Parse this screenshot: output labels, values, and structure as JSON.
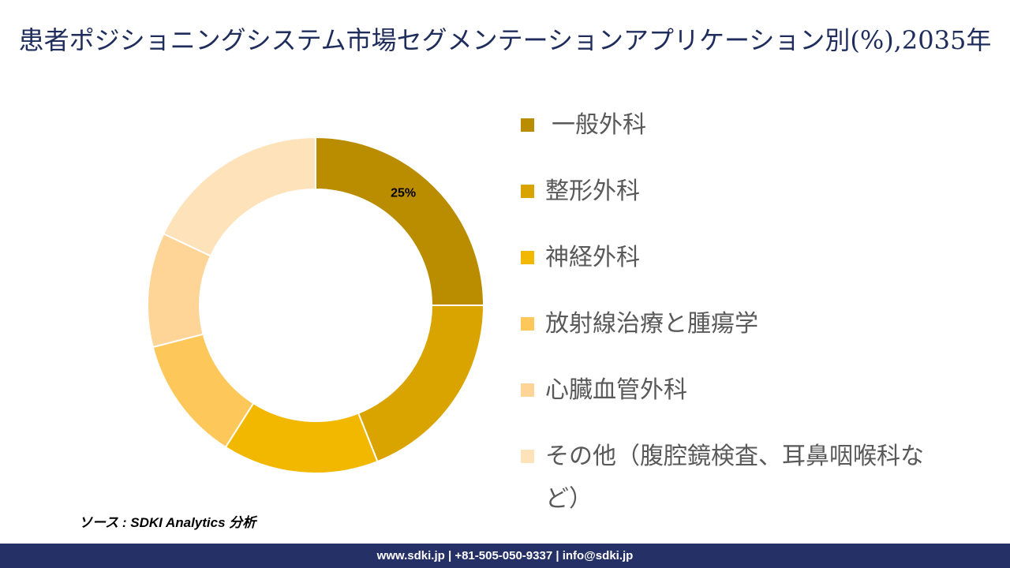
{
  "chart_data": {
    "type": "pie",
    "subtype": "donut",
    "title": "患者ポジショニングシステム市場セグメンテーションアプリケーション別(%),2035年",
    "categories": [
      "一般外科",
      "整形外科",
      "神経外科",
      "放射線治療と腫瘍学",
      "心臓血管外科",
      "その他（腹腔鏡検査、耳鼻咽喉科など）"
    ],
    "values": [
      25,
      19,
      15,
      12,
      11,
      18
    ],
    "colors": [
      "#BA8C00",
      "#D9A300",
      "#F2B800",
      "#FDC75A",
      "#FED597",
      "#FEE2B9"
    ],
    "data_labels": [
      "25%",
      null,
      null,
      null,
      null,
      null
    ],
    "legend_placement": "right"
  },
  "source": "ソース : SDKI Analytics 分析",
  "footer": "www.sdki.jp | +81-505-050-9337 | info@sdki.jp"
}
